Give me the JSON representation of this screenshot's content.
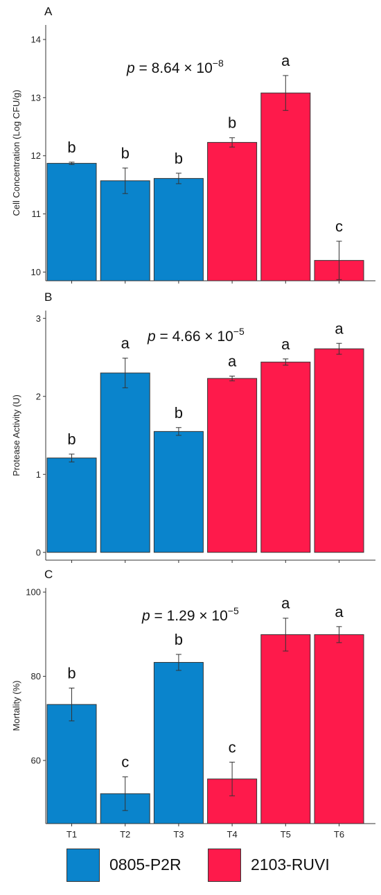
{
  "colors": {
    "0805-P2R": "#0a84cc",
    "2103-RUVI": "#fe1a4b"
  },
  "legend": [
    {
      "name": "0805-P2R",
      "color": "#0a84cc"
    },
    {
      "name": "2103-RUVI",
      "color": "#fe1a4b"
    }
  ],
  "chart_data": [
    {
      "type": "bar",
      "panel": "A",
      "ylabel": "Cell Concentration (Log CFU/g)",
      "p_prefix": "p",
      "p_value": " = 8.64 × 10",
      "p_exp": "−8",
      "categories": [
        "T1",
        "T2",
        "T3",
        "T4",
        "T5",
        "T6"
      ],
      "groups": [
        "0805-P2R",
        "0805-P2R",
        "0805-P2R",
        "2103-RUVI",
        "2103-RUVI",
        "2103-RUVI"
      ],
      "values": [
        11.87,
        11.57,
        11.61,
        12.23,
        13.08,
        10.2
      ],
      "errors": [
        0.02,
        0.22,
        0.09,
        0.08,
        0.3,
        0.33
      ],
      "letters": [
        "b",
        "b",
        "b",
        "b",
        "a",
        "c"
      ],
      "ylim": [
        9.85,
        14.25
      ],
      "yticks": [
        10,
        11,
        12,
        13,
        14
      ]
    },
    {
      "type": "bar",
      "panel": "B",
      "ylabel": "Protease Activity (U)",
      "p_prefix": "p",
      "p_value": " = 4.66 × 10",
      "p_exp": "−5",
      "categories": [
        "T1",
        "T2",
        "T3",
        "T4",
        "T5",
        "T6"
      ],
      "groups": [
        "0805-P2R",
        "0805-P2R",
        "0805-P2R",
        "2103-RUVI",
        "2103-RUVI",
        "2103-RUVI"
      ],
      "values": [
        1.21,
        2.3,
        1.55,
        2.23,
        2.44,
        2.61
      ],
      "errors": [
        0.05,
        0.19,
        0.05,
        0.03,
        0.04,
        0.07
      ],
      "letters": [
        "b",
        "a",
        "b",
        "a",
        "a",
        "a"
      ],
      "ylim": [
        -0.1,
        3.1
      ],
      "yticks": [
        0,
        1,
        2,
        3
      ]
    },
    {
      "type": "bar",
      "panel": "C",
      "ylabel": "Mortality (%)",
      "p_prefix": "p",
      "p_value": " = 1.29 × 10",
      "p_exp": "−5",
      "categories": [
        "T1",
        "T2",
        "T3",
        "T4",
        "T5",
        "T6"
      ],
      "groups": [
        "0805-P2R",
        "0805-P2R",
        "0805-P2R",
        "2103-RUVI",
        "2103-RUVI",
        "2103-RUVI"
      ],
      "values": [
        73.3,
        52.1,
        83.3,
        55.6,
        89.9,
        89.9
      ],
      "errors": [
        3.9,
        4.0,
        1.9,
        4.0,
        3.9,
        1.9
      ],
      "letters": [
        "b",
        "c",
        "b",
        "c",
        "a",
        "a"
      ],
      "ylim": [
        45,
        101
      ],
      "yticks": [
        60,
        80,
        100
      ]
    }
  ]
}
